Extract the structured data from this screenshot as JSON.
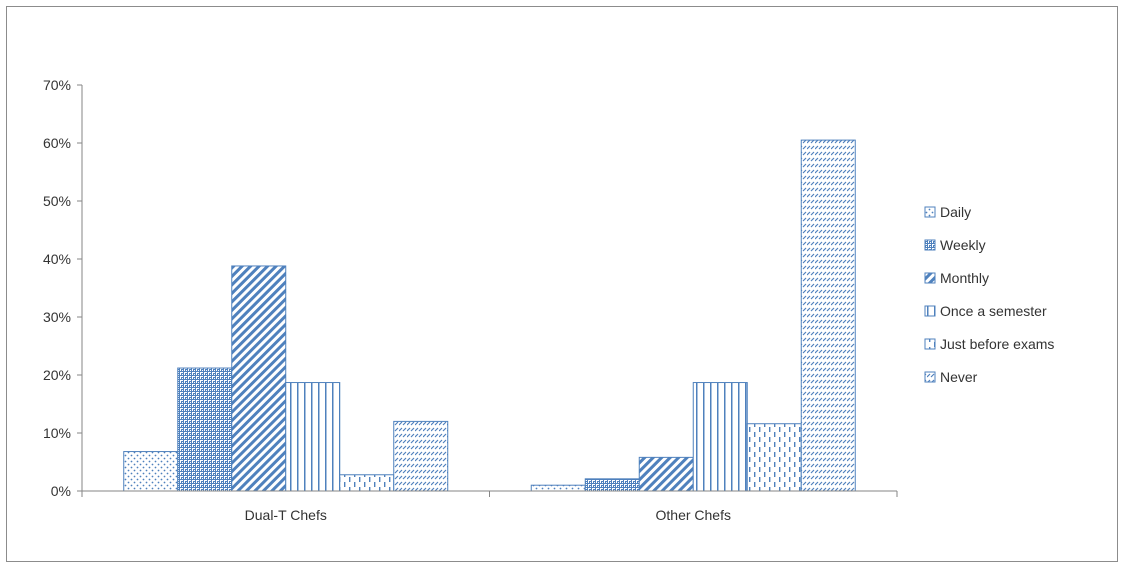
{
  "chart_data": {
    "type": "bar",
    "categories": [
      "Dual-T Chefs",
      "Other Chefs"
    ],
    "series": [
      {
        "name": "Daily",
        "values": [
          6.8,
          1.0
        ],
        "pattern": "dots"
      },
      {
        "name": "Weekly",
        "values": [
          21.2,
          2.1
        ],
        "pattern": "grid"
      },
      {
        "name": "Monthly",
        "values": [
          38.8,
          5.8
        ],
        "pattern": "diag"
      },
      {
        "name": "Once a semester",
        "values": [
          18.7,
          18.7
        ],
        "pattern": "vlines"
      },
      {
        "name": "Just before exams",
        "values": [
          2.8,
          11.6
        ],
        "pattern": "dashes"
      },
      {
        "name": "Never",
        "values": [
          12.0,
          60.5
        ],
        "pattern": "smalldiag"
      }
    ],
    "yticks": [
      "0%",
      "10%",
      "20%",
      "30%",
      "40%",
      "50%",
      "60%",
      "70%"
    ],
    "ylim": [
      0,
      70
    ],
    "grid": false,
    "legend_position": "right",
    "colors": {
      "bar_stroke": "#4f81bd",
      "axis": "#868686",
      "text": "#333333"
    }
  }
}
